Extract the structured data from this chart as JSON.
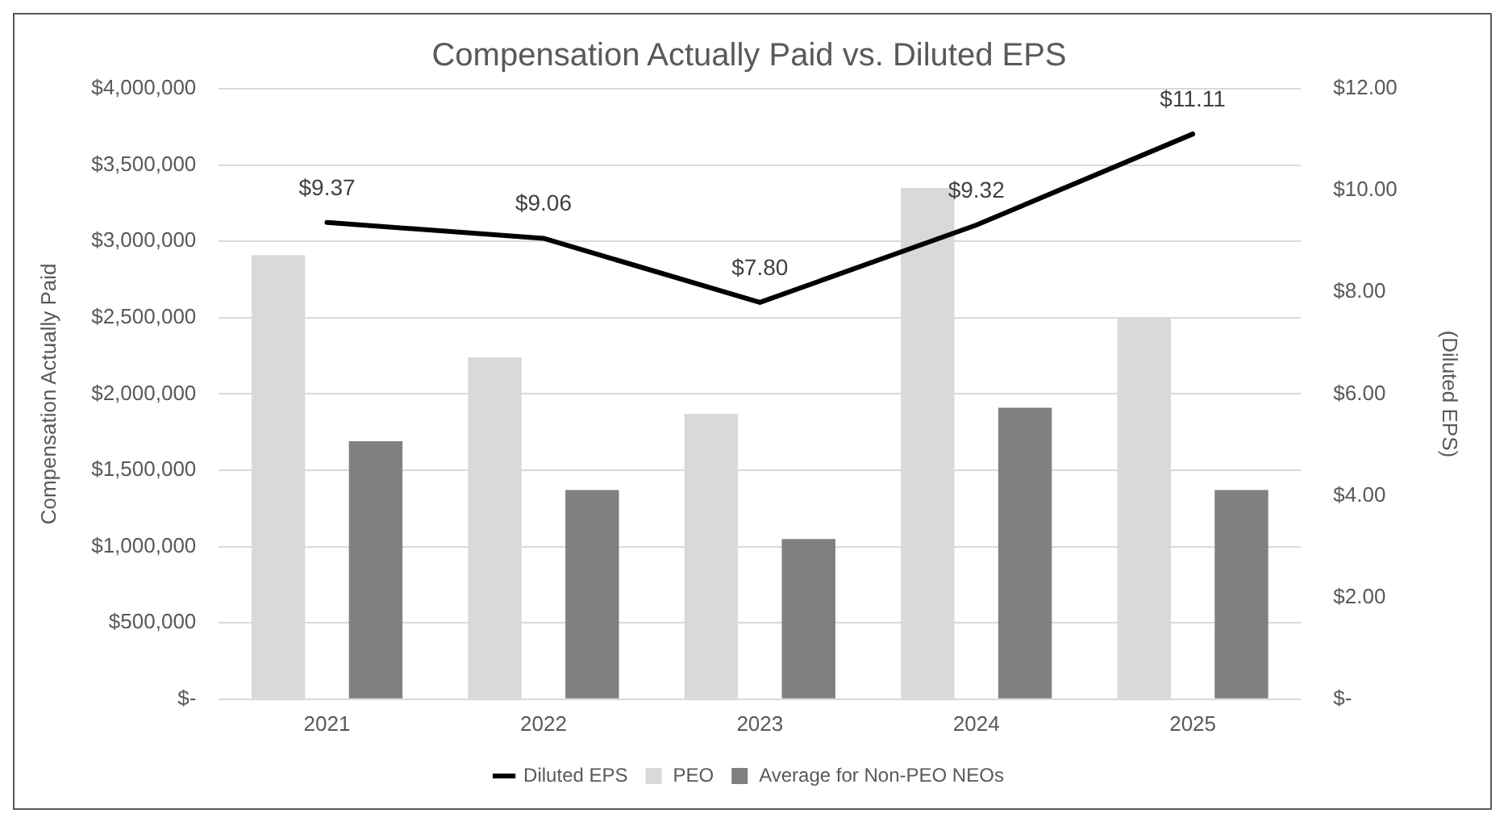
{
  "chart_data": {
    "type": "bar",
    "title": "Compensation Actually Paid vs. Diluted EPS",
    "categories": [
      "2021",
      "2022",
      "2023",
      "2024",
      "2025"
    ],
    "ylabel": "Compensation Actually Paid",
    "y2label": "(Diluted EPS)",
    "series": [
      {
        "name": "PEO",
        "color": "#d9d9d9",
        "values": [
          2910000,
          2240000,
          1870000,
          3350000,
          2500000
        ]
      },
      {
        "name": "Average for Non-PEO NEOs",
        "color": "#808080",
        "values": [
          1690000,
          1370000,
          1050000,
          1910000,
          1370000
        ]
      },
      {
        "name": "Diluted EPS",
        "type": "line",
        "axis": "y2",
        "color": "#000000",
        "values": [
          9.37,
          9.06,
          7.8,
          9.32,
          11.11
        ],
        "value_labels": [
          "$9.37",
          "$9.06",
          "$7.80",
          "$9.32",
          "$11.11"
        ]
      }
    ],
    "ylim": [
      0,
      4000000
    ],
    "yticks": [
      {
        "value": 0,
        "label": "$-"
      },
      {
        "value": 500000,
        "label": "$500,000"
      },
      {
        "value": 1000000,
        "label": "$1,000,000"
      },
      {
        "value": 1500000,
        "label": "$1,500,000"
      },
      {
        "value": 2000000,
        "label": "$2,000,000"
      },
      {
        "value": 2500000,
        "label": "$2,500,000"
      },
      {
        "value": 3000000,
        "label": "$3,000,000"
      },
      {
        "value": 3500000,
        "label": "$3,500,000"
      },
      {
        "value": 4000000,
        "label": "$4,000,000"
      }
    ],
    "y2lim": [
      0,
      12
    ],
    "y2ticks": [
      {
        "value": 0,
        "label": "$-"
      },
      {
        "value": 2,
        "label": "$2.00"
      },
      {
        "value": 4,
        "label": "$4.00"
      },
      {
        "value": 6,
        "label": "$6.00"
      },
      {
        "value": 8,
        "label": "$8.00"
      },
      {
        "value": 10,
        "label": "$10.00"
      },
      {
        "value": 12,
        "label": "$12.00"
      }
    ],
    "grid": "y",
    "legend": "bottom",
    "marker": "none"
  }
}
